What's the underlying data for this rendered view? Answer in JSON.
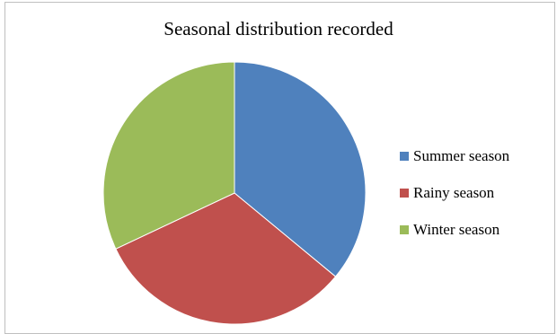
{
  "chart_data": {
    "type": "pie",
    "title": "Seasonal distribution recorded",
    "categories": [
      "Summer season",
      "Rainy season",
      "Winter season"
    ],
    "values": [
      36,
      32,
      32
    ],
    "colors": [
      "#4f81bd",
      "#c0504d",
      "#9bbb59"
    ],
    "start_angle_deg": 0,
    "direction": "clockwise",
    "legend_position": "right"
  }
}
